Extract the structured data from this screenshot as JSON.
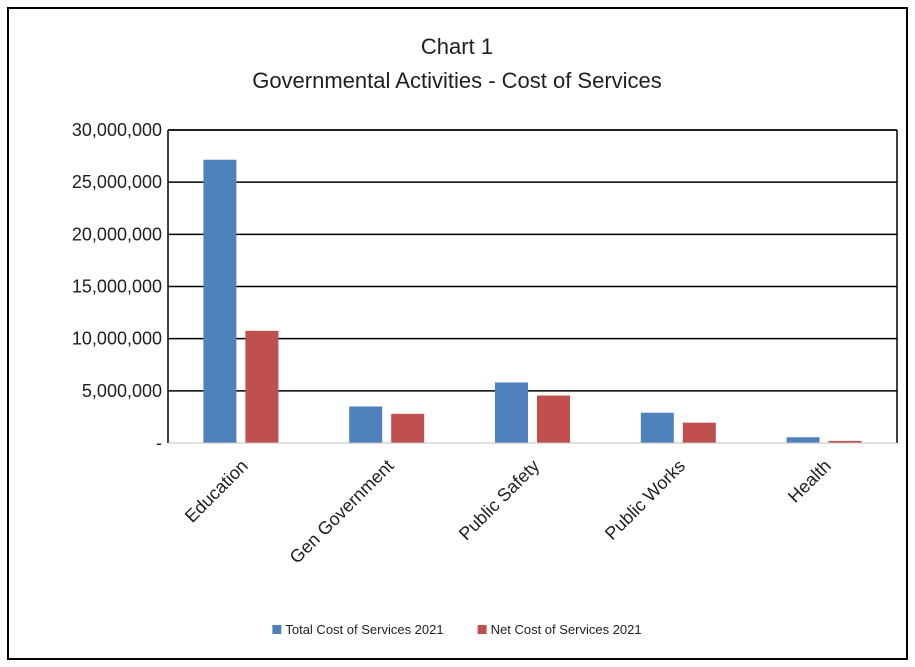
{
  "chart_data": {
    "type": "bar",
    "title": "Chart 1",
    "subtitle": "Governmental Activities - Cost of Services",
    "categories": [
      "Education",
      "Gen Government",
      "Public Safety",
      "Public Works",
      "Health"
    ],
    "series": [
      {
        "name": "Total Cost of Services 2021",
        "color": "#4f81bd",
        "values": [
          27150000,
          3500000,
          5800000,
          2900000,
          550000
        ]
      },
      {
        "name": "Net Cost of Services 2021",
        "color": "#c0504d",
        "values": [
          10750000,
          2800000,
          4550000,
          1950000,
          200000
        ]
      }
    ],
    "y_ticks": [
      {
        "value": 0,
        "label": "-"
      },
      {
        "value": 5000000,
        "label": "5,000,000"
      },
      {
        "value": 10000000,
        "label": "10,000,000"
      },
      {
        "value": 15000000,
        "label": "15,000,000"
      },
      {
        "value": 20000000,
        "label": "20,000,000"
      },
      {
        "value": 25000000,
        "label": "25,000,000"
      },
      {
        "value": 30000000,
        "label": "30,000,000"
      }
    ],
    "ylim": [
      0,
      30000000
    ],
    "xlabel": "",
    "ylabel": "",
    "grid": true,
    "legend_position": "bottom"
  }
}
